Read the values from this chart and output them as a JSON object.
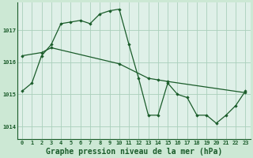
{
  "title": "Graphe pression niveau de la mer (hPa)",
  "bg_color": "#cce8d4",
  "plot_bg_color": "#dff0e8",
  "grid_color": "#aacfbb",
  "line_color": "#1a5c2a",
  "marker_color": "#1a5c2a",
  "xlim": [
    -0.5,
    23.5
  ],
  "ylim": [
    1013.6,
    1017.85
  ],
  "yticks": [
    1014,
    1015,
    1016,
    1017
  ],
  "xticks": [
    0,
    1,
    2,
    3,
    4,
    5,
    6,
    7,
    8,
    9,
    10,
    11,
    12,
    13,
    14,
    15,
    16,
    17,
    18,
    19,
    20,
    21,
    22,
    23
  ],
  "series1_x": [
    0,
    1,
    2,
    3,
    4,
    5,
    6,
    7,
    8,
    9,
    10,
    11,
    12,
    13,
    14,
    15,
    16,
    17,
    18,
    19,
    20,
    21,
    22,
    23
  ],
  "series1_y": [
    1015.1,
    1015.35,
    1016.2,
    1016.55,
    1017.2,
    1017.25,
    1017.3,
    1017.2,
    1017.5,
    1017.6,
    1017.65,
    1016.55,
    1015.5,
    1014.35,
    1014.35,
    1015.35,
    1015.0,
    1014.9,
    1014.35,
    1014.35,
    1014.1,
    1014.35,
    1014.65,
    1015.1
  ],
  "series2_x": [
    0,
    2,
    3,
    10,
    13,
    14,
    15,
    23
  ],
  "series2_y": [
    1016.2,
    1016.3,
    1016.45,
    1015.95,
    1015.5,
    1015.45,
    1015.4,
    1015.05
  ],
  "title_fontsize": 7,
  "tick_fontsize": 5,
  "label_color": "#1a5c2a",
  "spine_color": "#1a5c2a"
}
